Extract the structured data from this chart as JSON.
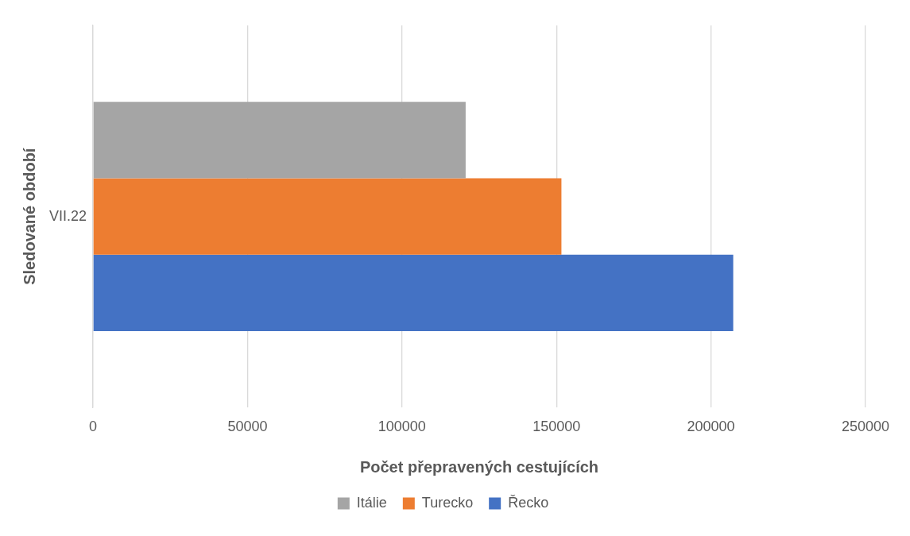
{
  "chart_data": {
    "type": "bar",
    "orientation": "horizontal",
    "xlabel": "Počet přepravených cestujících",
    "ylabel": "Sledované období",
    "categories": [
      "VII.22"
    ],
    "series": [
      {
        "name": "Itálie",
        "color": "#a5a5a5",
        "values": [
          120600
        ]
      },
      {
        "name": "Turecko",
        "color": "#ed7d31",
        "values": [
          151600
        ]
      },
      {
        "name": "Řecko",
        "color": "#4472c4",
        "values": [
          207200
        ]
      }
    ],
    "xlim": [
      0,
      250000
    ],
    "xticks": [
      0,
      50000,
      100000,
      150000,
      200000,
      250000
    ],
    "grid": "x",
    "legend": "bottom"
  }
}
